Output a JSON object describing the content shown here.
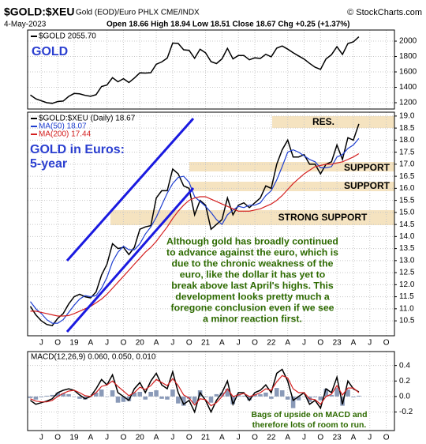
{
  "header": {
    "title": "$GOLD:$XEU",
    "subtitle": "Gold (EOD)/Euro PHLX CME/INDX",
    "source": "© StockCharts.com",
    "date": "4-May-2023",
    "quote": "Open 18.66 High 18.94 Low 18.51 Close 18.67 Chg +0.25 (+1.37%)"
  },
  "chart_data": [
    {
      "type": "line",
      "annotation": "GOLD",
      "ylim": [
        1118,
        2144
      ],
      "yticks": [
        1200,
        1400,
        1600,
        1800,
        2000
      ],
      "grid": true,
      "series": [
        {
          "name": "$GOLD 2055.70",
          "color": "#000000",
          "values": [
            1300,
            1250,
            1225,
            1200,
            1192,
            1215,
            1222,
            1282,
            1320,
            1315,
            1295,
            1283,
            1305,
            1410,
            1430,
            1525,
            1472,
            1512,
            1463,
            1520,
            1588,
            1585,
            1590,
            1700,
            1730,
            1780,
            1975,
            1970,
            1887,
            1880,
            1777,
            1895,
            1847,
            1734,
            1708,
            1769,
            1906,
            1770,
            1814,
            1814,
            1757,
            1783,
            1775,
            1829,
            1796,
            1909,
            1937,
            1896,
            1848,
            1807,
            1766,
            1711,
            1661,
            1633,
            1768,
            1824,
            1928,
            1827,
            1969,
            1990,
            2055.7,
            null,
            null,
            null,
            null,
            null,
            null
          ]
        }
      ]
    },
    {
      "type": "line",
      "annotation_lines": [
        "GOLD in Euros:",
        "5-year"
      ],
      "zones": [
        "RES.",
        "SUPPORT",
        "SUPPORT",
        "STRONG SUPPORT"
      ],
      "comment_lines": [
        "Although gold has broadly continued",
        "to advance against the euro, which is",
        "due to the chronic weakness of the",
        "euro, like the dollar it has yet to",
        "break above last April's highs. This",
        "development looks pretty much a",
        "foregone conclusion even if we see",
        "a minor reaction first."
      ],
      "categories": [
        null,
        null,
        "J",
        null,
        null,
        "O",
        null,
        null,
        "19",
        null,
        null,
        "A",
        null,
        null,
        "J",
        null,
        null,
        "O",
        null,
        null,
        "20",
        null,
        null,
        "A",
        null,
        null,
        "J",
        null,
        null,
        "O",
        null,
        null,
        "21",
        null,
        null,
        "A",
        null,
        null,
        "J",
        null,
        null,
        "O",
        null,
        null,
        "22",
        null,
        null,
        "A",
        null,
        null,
        "J",
        null,
        null,
        "O",
        null,
        null,
        "23",
        null,
        null,
        "A",
        null,
        null,
        "J",
        null,
        null,
        "O",
        null
      ],
      "ylim": [
        9.88,
        19.16
      ],
      "yticks": [
        10.5,
        {
          "value": 11,
          "label": "11.0"
        },
        11.5,
        {
          "value": 12,
          "label": "12.0"
        },
        12.5,
        {
          "value": 13,
          "label": "13.0"
        },
        13.5,
        {
          "value": 14,
          "label": "14.0"
        },
        14.5,
        {
          "value": 15,
          "label": "15.0"
        },
        15.5,
        {
          "value": 16,
          "label": "16.0"
        },
        16.5,
        {
          "value": 17,
          "label": "17.0"
        },
        17.5,
        {
          "value": 18,
          "label": "18.0"
        },
        18.5,
        {
          "value": 19,
          "label": "19.0"
        }
      ],
      "grid": true,
      "series": [
        {
          "name": "$GOLD:$XEU (Daily) 18.67",
          "color": "#000000",
          "values": [
            11.1,
            10.75,
            10.5,
            10.35,
            10.3,
            10.6,
            10.8,
            11.2,
            11.5,
            11.6,
            11.5,
            11.45,
            11.7,
            12.4,
            12.85,
            13.7,
            13.5,
            13.55,
            13.25,
            13.55,
            14.3,
            14.4,
            14.45,
            15.6,
            15.9,
            15.9,
            16.8,
            16.6,
            16.1,
            16.0,
            14.9,
            15.5,
            15.3,
            14.3,
            14.5,
            14.7,
            15.6,
            14.9,
            15.3,
            15.4,
            15.2,
            15.4,
            15.6,
            16.1,
            16.0,
            17.0,
            17.6,
            18.0,
            17.3,
            17.3,
            17.4,
            17.0,
            17.0,
            16.6,
            17.0,
            17.1,
            17.8,
            17.2,
            18.1,
            18.0,
            18.67,
            null,
            null,
            null,
            null,
            null,
            null
          ]
        },
        {
          "name": "MA(50) 18.07",
          "color": "#1f3fd0",
          "values": [
            11.3,
            11.0,
            10.8,
            10.55,
            10.4,
            10.4,
            10.55,
            10.85,
            11.15,
            11.4,
            11.55,
            11.5,
            11.55,
            11.85,
            12.3,
            12.95,
            13.35,
            13.6,
            13.45,
            13.45,
            13.7,
            14.1,
            14.4,
            14.8,
            15.3,
            15.8,
            16.2,
            16.45,
            16.5,
            16.25,
            15.65,
            15.45,
            15.25,
            15.0,
            14.7,
            14.5,
            14.9,
            15.1,
            15.25,
            15.2,
            15.3,
            15.3,
            15.4,
            15.7,
            15.9,
            16.35,
            16.9,
            17.5,
            17.6,
            17.5,
            17.35,
            17.2,
            17.1,
            16.85,
            16.85,
            16.9,
            17.3,
            17.4,
            17.65,
            17.8,
            18.07,
            null,
            null,
            null,
            null,
            null,
            null
          ]
        },
        {
          "name": "MA(200) 17.44",
          "color": "#d42020",
          "values": [
            10.9,
            10.9,
            10.85,
            10.8,
            10.75,
            10.7,
            10.7,
            10.72,
            10.8,
            10.9,
            11.0,
            11.1,
            11.25,
            11.4,
            11.6,
            11.85,
            12.1,
            12.35,
            12.6,
            12.85,
            13.1,
            13.35,
            13.55,
            13.8,
            14.1,
            14.4,
            14.75,
            15.05,
            15.3,
            15.5,
            15.6,
            15.65,
            15.65,
            15.55,
            15.45,
            15.35,
            15.25,
            15.15,
            15.05,
            15.05,
            15.05,
            15.1,
            15.15,
            15.25,
            15.35,
            15.5,
            15.7,
            15.95,
            16.2,
            16.4,
            16.6,
            16.75,
            16.9,
            16.95,
            17.0,
            17.0,
            17.05,
            17.1,
            17.2,
            17.3,
            17.44,
            null,
            null,
            null,
            null,
            null,
            null
          ]
        }
      ]
    },
    {
      "type": "macd",
      "title": "MACD(12,26,9) 0.060, 0.050, 0.010",
      "comment_lines": [
        "Bags of upside on MACD and",
        "therefore lots of room to run."
      ],
      "categories": [
        null,
        null,
        "J",
        null,
        null,
        "O",
        null,
        null,
        "19",
        null,
        null,
        "A",
        null,
        null,
        "J",
        null,
        null,
        "O",
        null,
        null,
        "20",
        null,
        null,
        "A",
        null,
        null,
        "J",
        null,
        null,
        "O",
        null,
        null,
        "21",
        null,
        null,
        "A",
        null,
        null,
        "J",
        null,
        null,
        "O",
        null,
        null,
        "22",
        null,
        null,
        "A",
        null,
        null,
        "J",
        null,
        null,
        "O",
        null,
        null,
        "23",
        null,
        null,
        "A",
        null,
        null,
        "J",
        null,
        null,
        "O",
        null
      ],
      "ylim": [
        -0.44,
        0.58
      ],
      "yticks": [
        -0.2,
        {
          "value": 0,
          "label": "0.0"
        },
        0.2,
        0.4
      ],
      "grid": true,
      "histogram": {
        "color": "#8a9ab8",
        "values": [
          -0.02,
          -0.04,
          -0.01,
          0.01,
          0.02,
          0.05,
          0.04,
          0.03,
          0.0,
          -0.03,
          -0.04,
          0.0,
          0.05,
          0.09,
          0.0,
          0.08,
          -0.08,
          -0.07,
          -0.06,
          0.05,
          0.06,
          -0.04,
          0.06,
          0.08,
          -0.03,
          -0.04,
          0.09,
          -0.09,
          -0.12,
          -0.03,
          -0.09,
          0.08,
          -0.01,
          -0.08,
          0.03,
          0.05,
          0.1,
          -0.1,
          0.03,
          0.01,
          -0.05,
          0.03,
          0.03,
          0.05,
          -0.03,
          0.11,
          0.08,
          -0.04,
          -0.15,
          -0.05,
          0.0,
          -0.07,
          -0.01,
          -0.05,
          0.1,
          0.02,
          0.11,
          -0.12,
          0.09,
          -0.01,
          0.01,
          null,
          null,
          null,
          null,
          null,
          null
        ]
      },
      "series": [
        {
          "color": "#000000",
          "values": [
            -0.05,
            -0.1,
            -0.08,
            -0.06,
            -0.03,
            0.05,
            0.08,
            0.1,
            0.08,
            0.02,
            -0.03,
            0.0,
            0.1,
            0.22,
            0.15,
            0.28,
            0.05,
            0.0,
            -0.05,
            0.1,
            0.18,
            0.05,
            0.2,
            0.3,
            0.15,
            0.1,
            0.32,
            0.05,
            -0.1,
            -0.05,
            -0.2,
            0.05,
            -0.05,
            -0.2,
            -0.05,
            0.05,
            0.2,
            -0.1,
            0.05,
            0.05,
            -0.05,
            0.05,
            0.08,
            0.15,
            0.05,
            0.3,
            0.35,
            0.2,
            -0.05,
            0.0,
            0.05,
            -0.1,
            -0.05,
            -0.15,
            0.1,
            0.05,
            0.25,
            -0.1,
            0.2,
            0.1,
            0.06,
            null,
            null,
            null,
            null,
            null,
            null
          ]
        },
        {
          "color": "#d42020",
          "values": [
            -0.03,
            -0.06,
            -0.07,
            -0.07,
            -0.05,
            0.0,
            0.04,
            0.07,
            0.08,
            0.05,
            0.01,
            0.0,
            0.05,
            0.13,
            0.15,
            0.2,
            0.13,
            0.07,
            0.01,
            0.05,
            0.12,
            0.09,
            0.14,
            0.22,
            0.18,
            0.14,
            0.23,
            0.14,
            0.02,
            -0.02,
            -0.11,
            -0.03,
            -0.04,
            -0.12,
            -0.08,
            0.0,
            0.1,
            0.0,
            0.02,
            0.04,
            0.0,
            0.02,
            0.05,
            0.1,
            0.08,
            0.19,
            0.27,
            0.24,
            0.1,
            0.05,
            0.05,
            -0.03,
            -0.04,
            -0.1,
            0.0,
            0.03,
            0.14,
            0.02,
            0.11,
            0.11,
            0.05,
            null,
            null,
            null,
            null,
            null,
            null
          ]
        }
      ]
    }
  ]
}
